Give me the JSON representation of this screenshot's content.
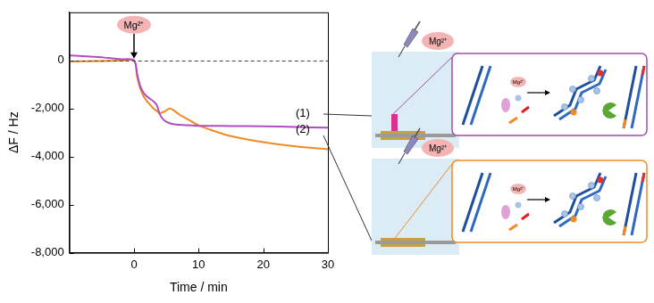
{
  "chart_data": {
    "type": "line",
    "x_label": "Time / min",
    "y_label": "ΔF / Hz",
    "xlim": [
      -10,
      30
    ],
    "xticks": [
      0,
      10,
      20,
      30
    ],
    "ylim": [
      -8000,
      2000
    ],
    "yticks": [
      -8000,
      -6000,
      -4000,
      -2000,
      0
    ],
    "grid": false,
    "series": [
      {
        "name": "(1)",
        "color": "#b04cc4",
        "x": [
          -10,
          -8,
          -6,
          -4,
          -2,
          0,
          0.5,
          1,
          1.5,
          2,
          2.5,
          3,
          3.5,
          4,
          4.5,
          5,
          6,
          7,
          8,
          10,
          12,
          15,
          20,
          25,
          30
        ],
        "values": [
          200,
          180,
          150,
          100,
          50,
          0,
          -600,
          -1100,
          -1350,
          -1500,
          -1600,
          -1700,
          -1850,
          -2250,
          -2450,
          -2550,
          -2650,
          -2680,
          -2700,
          -2720,
          -2725,
          -2730,
          -2740,
          -2770,
          -2800
        ]
      },
      {
        "name": "(2)",
        "color": "#f08a24",
        "x": [
          -10,
          -8,
          -6,
          -4,
          -2,
          0,
          0.5,
          1,
          1.5,
          2,
          2.5,
          3,
          3.5,
          4,
          4.5,
          5,
          5.5,
          6,
          7,
          8,
          10,
          12,
          15,
          20,
          25,
          30
        ],
        "values": [
          -50,
          -40,
          -30,
          -20,
          -10,
          0,
          -700,
          -1200,
          -1500,
          -1700,
          -1850,
          -2000,
          -2100,
          -2200,
          -2150,
          -2080,
          -2000,
          -2050,
          -2250,
          -2400,
          -2700,
          -2900,
          -3150,
          -3400,
          -3580,
          -3700
        ]
      }
    ],
    "annotations": [
      {
        "type": "hline",
        "y": 0,
        "line_style": "dashed"
      },
      {
        "type": "arrow",
        "x": 0,
        "y": 0,
        "text": "Mg²⁺"
      }
    ]
  },
  "diagram": {
    "panels": [
      {
        "reagent": "Mg²⁺",
        "inset_reagent": "Mg²⁺",
        "frame_color": "#a050a8"
      },
      {
        "reagent": "Mg²⁺",
        "inset_reagent": "Mg²⁺",
        "frame_color": "#f08a24"
      }
    ]
  }
}
